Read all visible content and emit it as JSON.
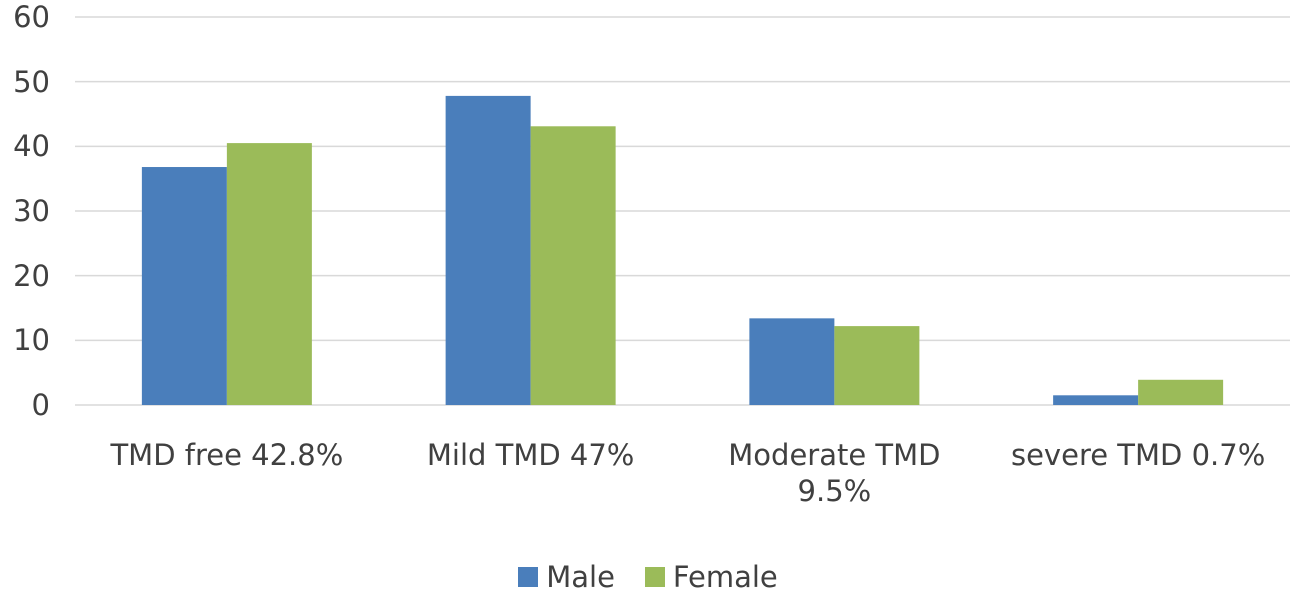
{
  "chart_data": {
    "type": "bar",
    "categories": [
      "TMD free 42.8%",
      "Mild TMD 47%",
      "Moderate TMD 9.5%",
      "severe TMD 0.7%"
    ],
    "series": [
      {
        "name": "Male",
        "color": "#4a7ebb",
        "values": [
          36.8,
          47.8,
          13.4,
          1.5
        ]
      },
      {
        "name": "Female",
        "color": "#9bbb59",
        "values": [
          40.5,
          43.1,
          12.2,
          3.9
        ]
      }
    ],
    "ylim": [
      0,
      60
    ],
    "yticks": [
      0,
      10,
      20,
      30,
      40,
      50,
      60
    ],
    "grid": true,
    "legend": "bottom"
  }
}
